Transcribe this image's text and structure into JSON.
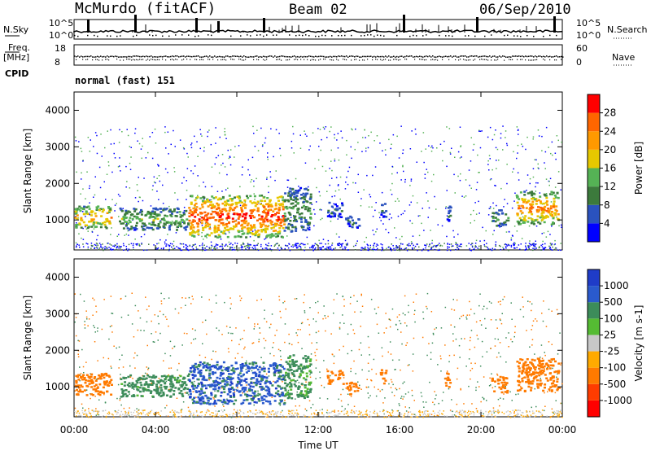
{
  "header": {
    "station": "McMurdo (fitACF)",
    "beam": "Beam 02",
    "date": "06/Sep/2010"
  },
  "top_panels": {
    "nsky_label": "N.Sky",
    "nsearch_label": "N.Search",
    "freq_label_1": "Freq.",
    "freq_label_2": "[MHz]",
    "nave_label": "Nave",
    "cpid_label": "CPID",
    "cpid_value": "normal (fast) 151",
    "noise_ticks": [
      "10^5",
      "10^0"
    ],
    "freq_ticks": [
      "18",
      "8"
    ],
    "nave_ticks": [
      "60",
      "0"
    ]
  },
  "colors": {
    "power_scale": [
      "#0000ff",
      "#2a52be",
      "#3c7a3c",
      "#55b255",
      "#e6c800",
      "#ff9900",
      "#ff6600",
      "#ff0000"
    ],
    "velocity_scale": [
      "#ff0000",
      "#ff3c00",
      "#ff7a00",
      "#ffaa00",
      "#c8c8c8",
      "#55bb33",
      "#3c8c5a",
      "#2a5acd",
      "#1f3cc8"
    ]
  },
  "chart_data": [
    {
      "type": "heatmap",
      "title": "Power",
      "xlabel": "Time UT",
      "ylabel": "Slant Range [km]",
      "xticks": [
        "00:00",
        "04:00",
        "08:00",
        "12:00",
        "16:00",
        "20:00",
        "00:00"
      ],
      "xlim_hours": [
        0,
        24
      ],
      "ylim": [
        180,
        4500
      ],
      "yticks": [
        1000,
        2000,
        3000,
        4000
      ],
      "colorbar_label": "Power [dB]",
      "colorbar_ticks": [
        4,
        8,
        12,
        16,
        20,
        24,
        28
      ],
      "echo_regions": [
        {
          "start_h": 0.0,
          "end_h": 1.8,
          "range_km": [
            800,
            1400
          ],
          "power_db": 22
        },
        {
          "start_h": 2.2,
          "end_h": 5.6,
          "range_km": [
            750,
            1350
          ],
          "power_db": 14
        },
        {
          "start_h": 5.6,
          "end_h": 10.3,
          "range_km": [
            550,
            1700
          ],
          "power_db": 28
        },
        {
          "start_h": 10.3,
          "end_h": 11.6,
          "range_km": [
            700,
            1900
          ],
          "power_db": 12
        },
        {
          "start_h": 12.4,
          "end_h": 13.2,
          "range_km": [
            1100,
            1500
          ],
          "power_db": 8
        },
        {
          "start_h": 13.3,
          "end_h": 14.0,
          "range_km": [
            800,
            1150
          ],
          "power_db": 8
        },
        {
          "start_h": 15.0,
          "end_h": 15.3,
          "range_km": [
            1100,
            1500
          ],
          "power_db": 8
        },
        {
          "start_h": 18.2,
          "end_h": 18.5,
          "range_km": [
            1000,
            1400
          ],
          "power_db": 8
        },
        {
          "start_h": 20.5,
          "end_h": 21.3,
          "range_km": [
            850,
            1300
          ],
          "power_db": 12
        },
        {
          "start_h": 21.7,
          "end_h": 23.8,
          "range_km": [
            900,
            1800
          ],
          "power_db": 24
        }
      ]
    },
    {
      "type": "heatmap",
      "title": "Velocity",
      "xlabel": "Time UT",
      "ylabel": "Slant Range [km]",
      "xticks": [
        "00:00",
        "04:00",
        "08:00",
        "12:00",
        "16:00",
        "20:00",
        "00:00"
      ],
      "xlim_hours": [
        0,
        24
      ],
      "ylim": [
        180,
        4500
      ],
      "yticks": [
        1000,
        2000,
        3000,
        4000
      ],
      "colorbar_label": "Velocity [m s-1]",
      "colorbar_ticks": [
        "1000",
        "500",
        "100",
        "25",
        "-25",
        "-100",
        "-500",
        "-1000"
      ],
      "echo_regions": [
        {
          "start_h": 0.0,
          "end_h": 1.8,
          "range_km": [
            800,
            1400
          ],
          "velocity": -300
        },
        {
          "start_h": 2.2,
          "end_h": 5.6,
          "range_km": [
            750,
            1350
          ],
          "velocity": 200
        },
        {
          "start_h": 5.6,
          "end_h": 10.3,
          "range_km": [
            550,
            1700
          ],
          "velocity": 700
        },
        {
          "start_h": 10.3,
          "end_h": 11.6,
          "range_km": [
            700,
            1900
          ],
          "velocity": 150
        },
        {
          "start_h": 12.4,
          "end_h": 13.2,
          "range_km": [
            1100,
            1500
          ],
          "velocity": -300
        },
        {
          "start_h": 13.3,
          "end_h": 14.0,
          "range_km": [
            800,
            1150
          ],
          "velocity": -300
        },
        {
          "start_h": 15.0,
          "end_h": 15.3,
          "range_km": [
            1100,
            1500
          ],
          "velocity": -300
        },
        {
          "start_h": 18.2,
          "end_h": 18.5,
          "range_km": [
            1000,
            1400
          ],
          "velocity": -300
        },
        {
          "start_h": 20.5,
          "end_h": 21.3,
          "range_km": [
            850,
            1300
          ],
          "velocity": -300
        },
        {
          "start_h": 21.7,
          "end_h": 23.8,
          "range_km": [
            900,
            1800
          ],
          "velocity": -300
        }
      ]
    }
  ]
}
